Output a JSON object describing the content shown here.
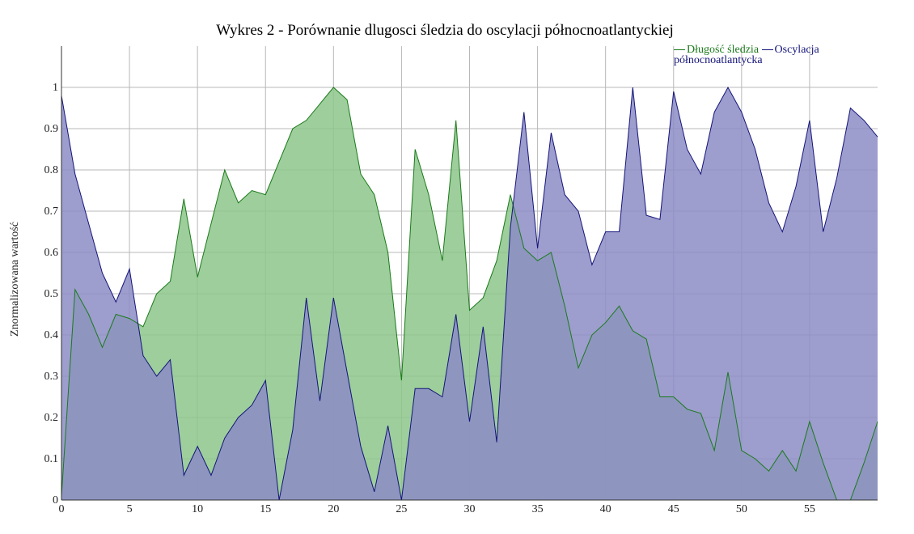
{
  "chart_data": {
    "type": "area",
    "title": "Wykres 2 - Porównanie dlugosci śledzia do oscylacji północnoatlantyckiej",
    "ylabel": "Znormalizowana wartość",
    "xlabel": "",
    "xlim": [
      0,
      60
    ],
    "ylim": [
      0,
      1.1
    ],
    "x_ticks": [
      0,
      5,
      10,
      15,
      20,
      25,
      30,
      35,
      40,
      45,
      50,
      55
    ],
    "y_ticks": [
      0,
      0.1,
      0.2,
      0.3,
      0.4,
      0.5,
      0.6,
      0.7,
      0.8,
      0.9,
      1
    ],
    "grid": true,
    "legend_position": "top-right",
    "series": [
      {
        "name": "Długość śledzia",
        "line_color": "#1a7a1a",
        "fill_color": "#8cc68a",
        "values": [
          0.01,
          0.51,
          0.45,
          0.37,
          0.45,
          0.44,
          0.42,
          0.5,
          0.53,
          0.73,
          0.54,
          0.67,
          0.8,
          0.72,
          0.75,
          0.74,
          0.82,
          0.9,
          0.92,
          0.96,
          1.0,
          0.97,
          0.79,
          0.74,
          0.6,
          0.29,
          0.85,
          0.74,
          0.58,
          0.92,
          0.46,
          0.49,
          0.58,
          0.74,
          0.61,
          0.58,
          0.6,
          0.47,
          0.32,
          0.4,
          0.43,
          0.47,
          0.41,
          0.39,
          0.25,
          0.25,
          0.22,
          0.21,
          0.12,
          0.31,
          0.12,
          0.1,
          0.07,
          0.12,
          0.07,
          0.19,
          0.09,
          0.0,
          0.0,
          0.09,
          0.19
        ]
      },
      {
        "name": "Oscylacja północnoatlantycka",
        "line_color": "#14147a",
        "fill_color": "#8c8cc6",
        "values": [
          0.98,
          0.79,
          0.67,
          0.55,
          0.48,
          0.56,
          0.35,
          0.3,
          0.34,
          0.06,
          0.13,
          0.06,
          0.15,
          0.2,
          0.23,
          0.29,
          0.0,
          0.17,
          0.49,
          0.24,
          0.49,
          0.31,
          0.13,
          0.02,
          0.18,
          0.0,
          0.27,
          0.27,
          0.25,
          0.45,
          0.19,
          0.42,
          0.14,
          0.66,
          0.94,
          0.61,
          0.89,
          0.74,
          0.7,
          0.57,
          0.65,
          0.65,
          1.0,
          0.69,
          0.68,
          0.99,
          0.85,
          0.79,
          0.94,
          1.0,
          0.94,
          0.85,
          0.72,
          0.65,
          0.76,
          0.92,
          0.65,
          0.78,
          0.95,
          0.92,
          0.88
        ]
      }
    ]
  }
}
